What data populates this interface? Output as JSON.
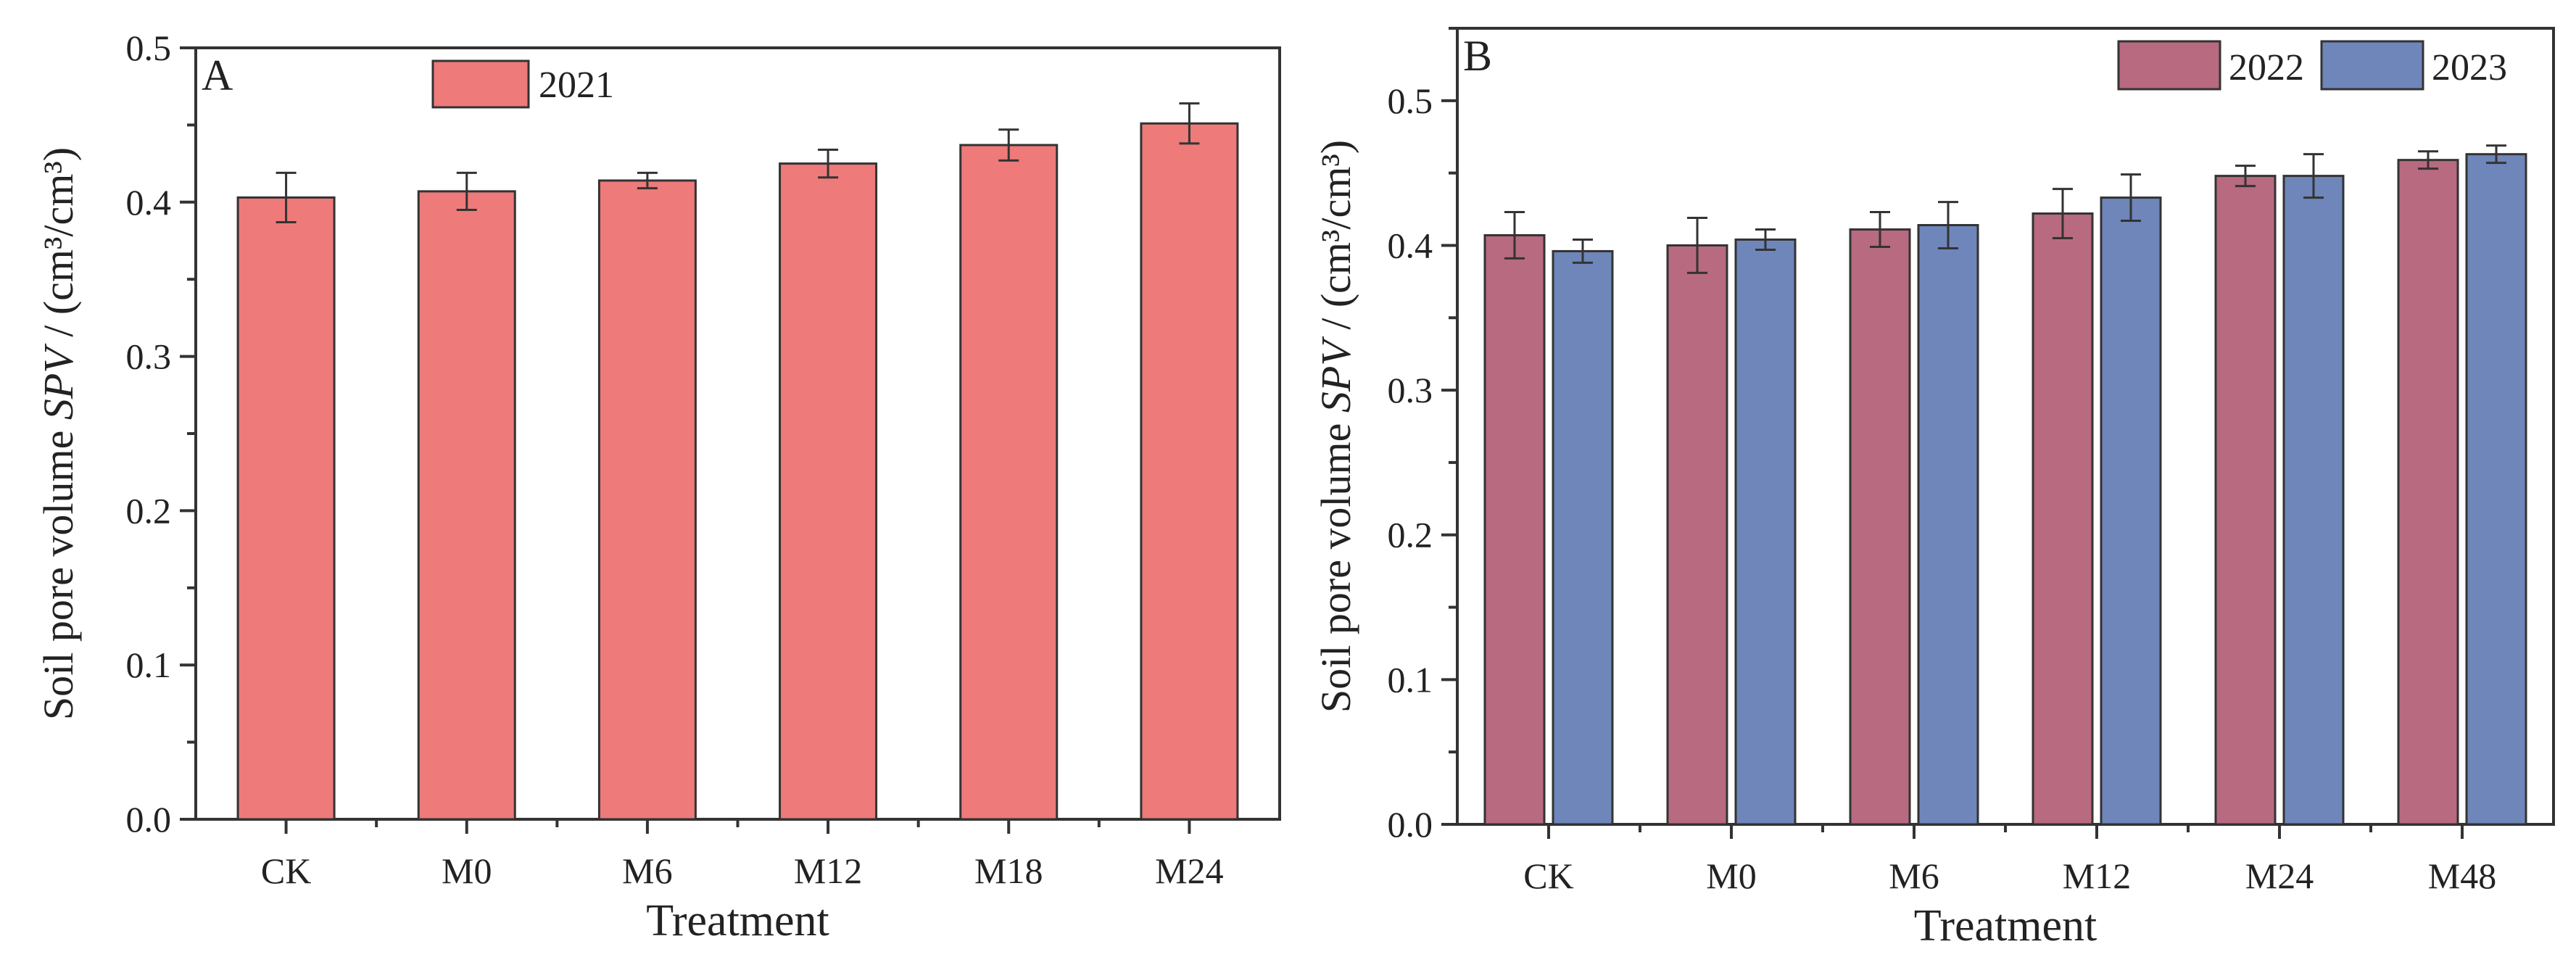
{
  "chart_data": [
    {
      "type": "bar",
      "panel_label": "A",
      "title": "",
      "categories": [
        "CK",
        "M0",
        "M6",
        "M12",
        "M18",
        "M24"
      ],
      "series": [
        {
          "name": "2021",
          "color": "#ee7a7a",
          "values": [
            0.403,
            0.407,
            0.414,
            0.425,
            0.437,
            0.451
          ],
          "errors": [
            0.016,
            0.012,
            0.005,
            0.009,
            0.01,
            0.013
          ]
        }
      ],
      "xlabel": "Treatment",
      "ylabel_parts": {
        "prefix": "Soil pore volume",
        "symbol": "SPV",
        "unit": " / (cm³/cm³)"
      },
      "ylim": [
        0,
        0.5
      ],
      "yticks": [
        "0.0",
        "0.1",
        "0.2",
        "0.3",
        "0.4",
        "0.5"
      ],
      "legend_position": "top-center"
    },
    {
      "type": "bar",
      "panel_label": "B",
      "title": "",
      "categories": [
        "CK",
        "M0",
        "M6",
        "M12",
        "M24",
        "M48"
      ],
      "series": [
        {
          "name": "2022",
          "color": "#b86a80",
          "values": [
            0.407,
            0.4,
            0.411,
            0.422,
            0.448,
            0.459
          ],
          "errors": [
            0.016,
            0.019,
            0.012,
            0.017,
            0.007,
            0.006
          ]
        },
        {
          "name": "2023",
          "color": "#6f86ba",
          "values": [
            0.396,
            0.404,
            0.414,
            0.433,
            0.448,
            0.463
          ],
          "errors": [
            0.008,
            0.007,
            0.016,
            0.016,
            0.015,
            0.006
          ]
        }
      ],
      "xlabel": "Treatment",
      "ylabel_parts": {
        "prefix": "Soil pore volume",
        "symbol": "SPV",
        "unit": " / (cm³/cm³)"
      },
      "ylim": [
        0,
        0.55
      ],
      "yticks": [
        "0.0",
        "0.1",
        "0.2",
        "0.3",
        "0.4",
        "0.5"
      ],
      "legend_position": "top-right"
    }
  ]
}
